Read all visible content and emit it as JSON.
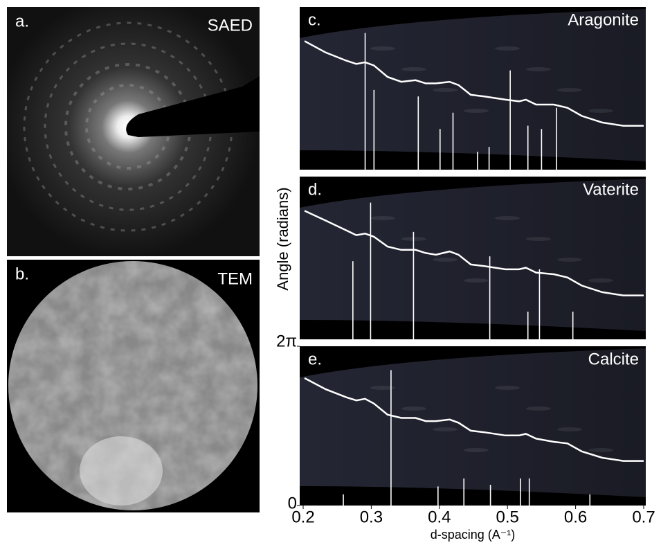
{
  "panels": [
    {
      "label": "a.",
      "title": "SAED"
    },
    {
      "label": "b.",
      "title": "TEM"
    }
  ],
  "chart_data": [
    {
      "type": "stick",
      "label": "c.",
      "title": "Aragonite",
      "xlim": [
        0.2,
        0.7
      ],
      "x": [
        0.291,
        0.304,
        0.369,
        0.401,
        0.42,
        0.456,
        0.473,
        0.504,
        0.53,
        0.55,
        0.572
      ],
      "values": [
        0.84,
        0.49,
        0.45,
        0.25,
        0.35,
        0.11,
        0.14,
        0.61,
        0.27,
        0.25,
        0.38
      ],
      "profile": {
        "x": [
          0.202,
          0.233,
          0.263,
          0.278,
          0.291,
          0.304,
          0.324,
          0.344,
          0.365,
          0.38,
          0.395,
          0.415,
          0.428,
          0.446,
          0.466,
          0.497,
          0.517,
          0.527,
          0.542,
          0.568,
          0.588,
          0.609,
          0.639,
          0.67,
          0.7
        ],
        "values": [
          0.79,
          0.72,
          0.67,
          0.65,
          0.66,
          0.64,
          0.57,
          0.54,
          0.55,
          0.53,
          0.53,
          0.54,
          0.52,
          0.46,
          0.45,
          0.43,
          0.42,
          0.43,
          0.4,
          0.4,
          0.38,
          0.33,
          0.29,
          0.27,
          0.27
        ]
      }
    },
    {
      "type": "stick",
      "label": "d.",
      "title": "Vaterite",
      "xlim": [
        0.2,
        0.7
      ],
      "x": [
        0.273,
        0.299,
        0.362,
        0.474,
        0.53,
        0.547,
        0.596
      ],
      "values": [
        0.48,
        0.84,
        0.66,
        0.51,
        0.17,
        0.43,
        0.17
      ],
      "profile": {
        "x": [
          0.202,
          0.233,
          0.263,
          0.278,
          0.291,
          0.304,
          0.324,
          0.344,
          0.365,
          0.38,
          0.395,
          0.415,
          0.428,
          0.446,
          0.466,
          0.497,
          0.517,
          0.527,
          0.542,
          0.568,
          0.588,
          0.609,
          0.639,
          0.67,
          0.7
        ],
        "values": [
          0.79,
          0.73,
          0.67,
          0.64,
          0.65,
          0.63,
          0.57,
          0.55,
          0.55,
          0.53,
          0.52,
          0.54,
          0.52,
          0.46,
          0.45,
          0.43,
          0.43,
          0.44,
          0.41,
          0.4,
          0.38,
          0.33,
          0.29,
          0.27,
          0.27
        ]
      }
    },
    {
      "type": "stick",
      "label": "e.",
      "title": "Calcite",
      "xlim": [
        0.2,
        0.7
      ],
      "xticks": [
        0.2,
        0.3,
        0.4,
        0.5,
        0.6,
        0.7
      ],
      "xlabel": "d-spacing (A⁻¹)",
      "ylabel": "Angle (radians)",
      "ylim": [
        0,
        6.283185
      ],
      "yticks": [
        0,
        {
          "value": 6.283185,
          "label": "2π"
        }
      ],
      "x": [
        0.259,
        0.329,
        0.398,
        0.436,
        0.475,
        0.519,
        0.532,
        0.621
      ],
      "values": [
        0.07,
        0.85,
        0.12,
        0.17,
        0.13,
        0.17,
        0.17,
        0.07
      ],
      "profile": {
        "x": [
          0.202,
          0.233,
          0.263,
          0.278,
          0.291,
          0.304,
          0.324,
          0.344,
          0.365,
          0.38,
          0.395,
          0.415,
          0.428,
          0.446,
          0.466,
          0.497,
          0.517,
          0.527,
          0.542,
          0.568,
          0.588,
          0.609,
          0.639,
          0.67,
          0.7
        ],
        "values": [
          0.8,
          0.73,
          0.68,
          0.66,
          0.67,
          0.64,
          0.57,
          0.55,
          0.55,
          0.53,
          0.53,
          0.54,
          0.52,
          0.47,
          0.46,
          0.44,
          0.44,
          0.45,
          0.42,
          0.4,
          0.39,
          0.34,
          0.3,
          0.28,
          0.28
        ]
      }
    }
  ]
}
